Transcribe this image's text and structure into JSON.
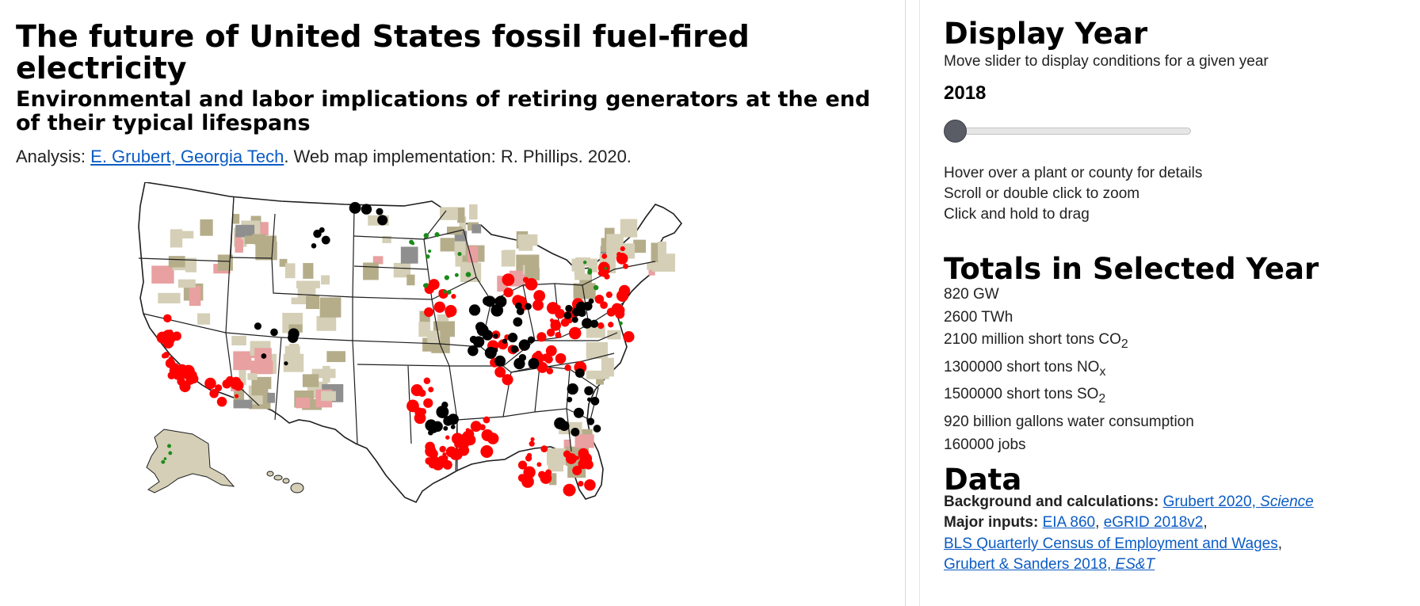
{
  "header": {
    "title": "The future of United States fossil fuel-fired electricity",
    "subtitle": "Environmental and labor implications of retiring generators at the end of their typical lifespans",
    "credit_prefix": "Analysis: ",
    "credit_link": "E. Grubert, Georgia Tech",
    "credit_suffix": ". Web map implementation: R. Phillips. 2020."
  },
  "panel": {
    "display_year_heading": "Display Year",
    "slider_hint": "Move slider to display conditions for a given year",
    "year": "2018",
    "slider_fraction": 0.0,
    "hints": [
      "Hover over a plant or county for details",
      "Scroll or double click to zoom",
      "Click and hold to drag"
    ],
    "totals_heading": "Totals in Selected Year",
    "totals": {
      "capacity": "820 GW",
      "generation": "2600 TWh",
      "co2_prefix": "2100 million short tons CO",
      "co2_sub": "2",
      "nox_prefix": "1300000 short tons NO",
      "nox_sub": "x",
      "so2_prefix": "1500000 short tons SO",
      "so2_sub": "2",
      "water": "920 billion gallons water consumption",
      "jobs": "160000 jobs"
    },
    "data_heading": "Data",
    "data": {
      "background_label": "Background and calculations:",
      "background_link_text": "Grubert 2020, ",
      "background_link_italic": "Science",
      "inputs_label": "Major inputs:",
      "link_eia": "EIA 860",
      "link_egrid": "eGRID 2018v2",
      "link_bls": "BLS Quarterly Census of Employment and Wages",
      "link_gs_text": "Grubert & Sanders 2018, ",
      "link_gs_italic": "ES&T"
    }
  },
  "map": {
    "colors": {
      "plant_fossil": "#ff0000",
      "plant_retiring": "#000000",
      "plant_other": "#1a8a1a",
      "county_tan": "#b5ad8a",
      "county_light": "#d4cfb6",
      "county_pink": "#e8a0a0",
      "county_gray": "#8f8f8f",
      "border": "#1e1e1e"
    }
  }
}
